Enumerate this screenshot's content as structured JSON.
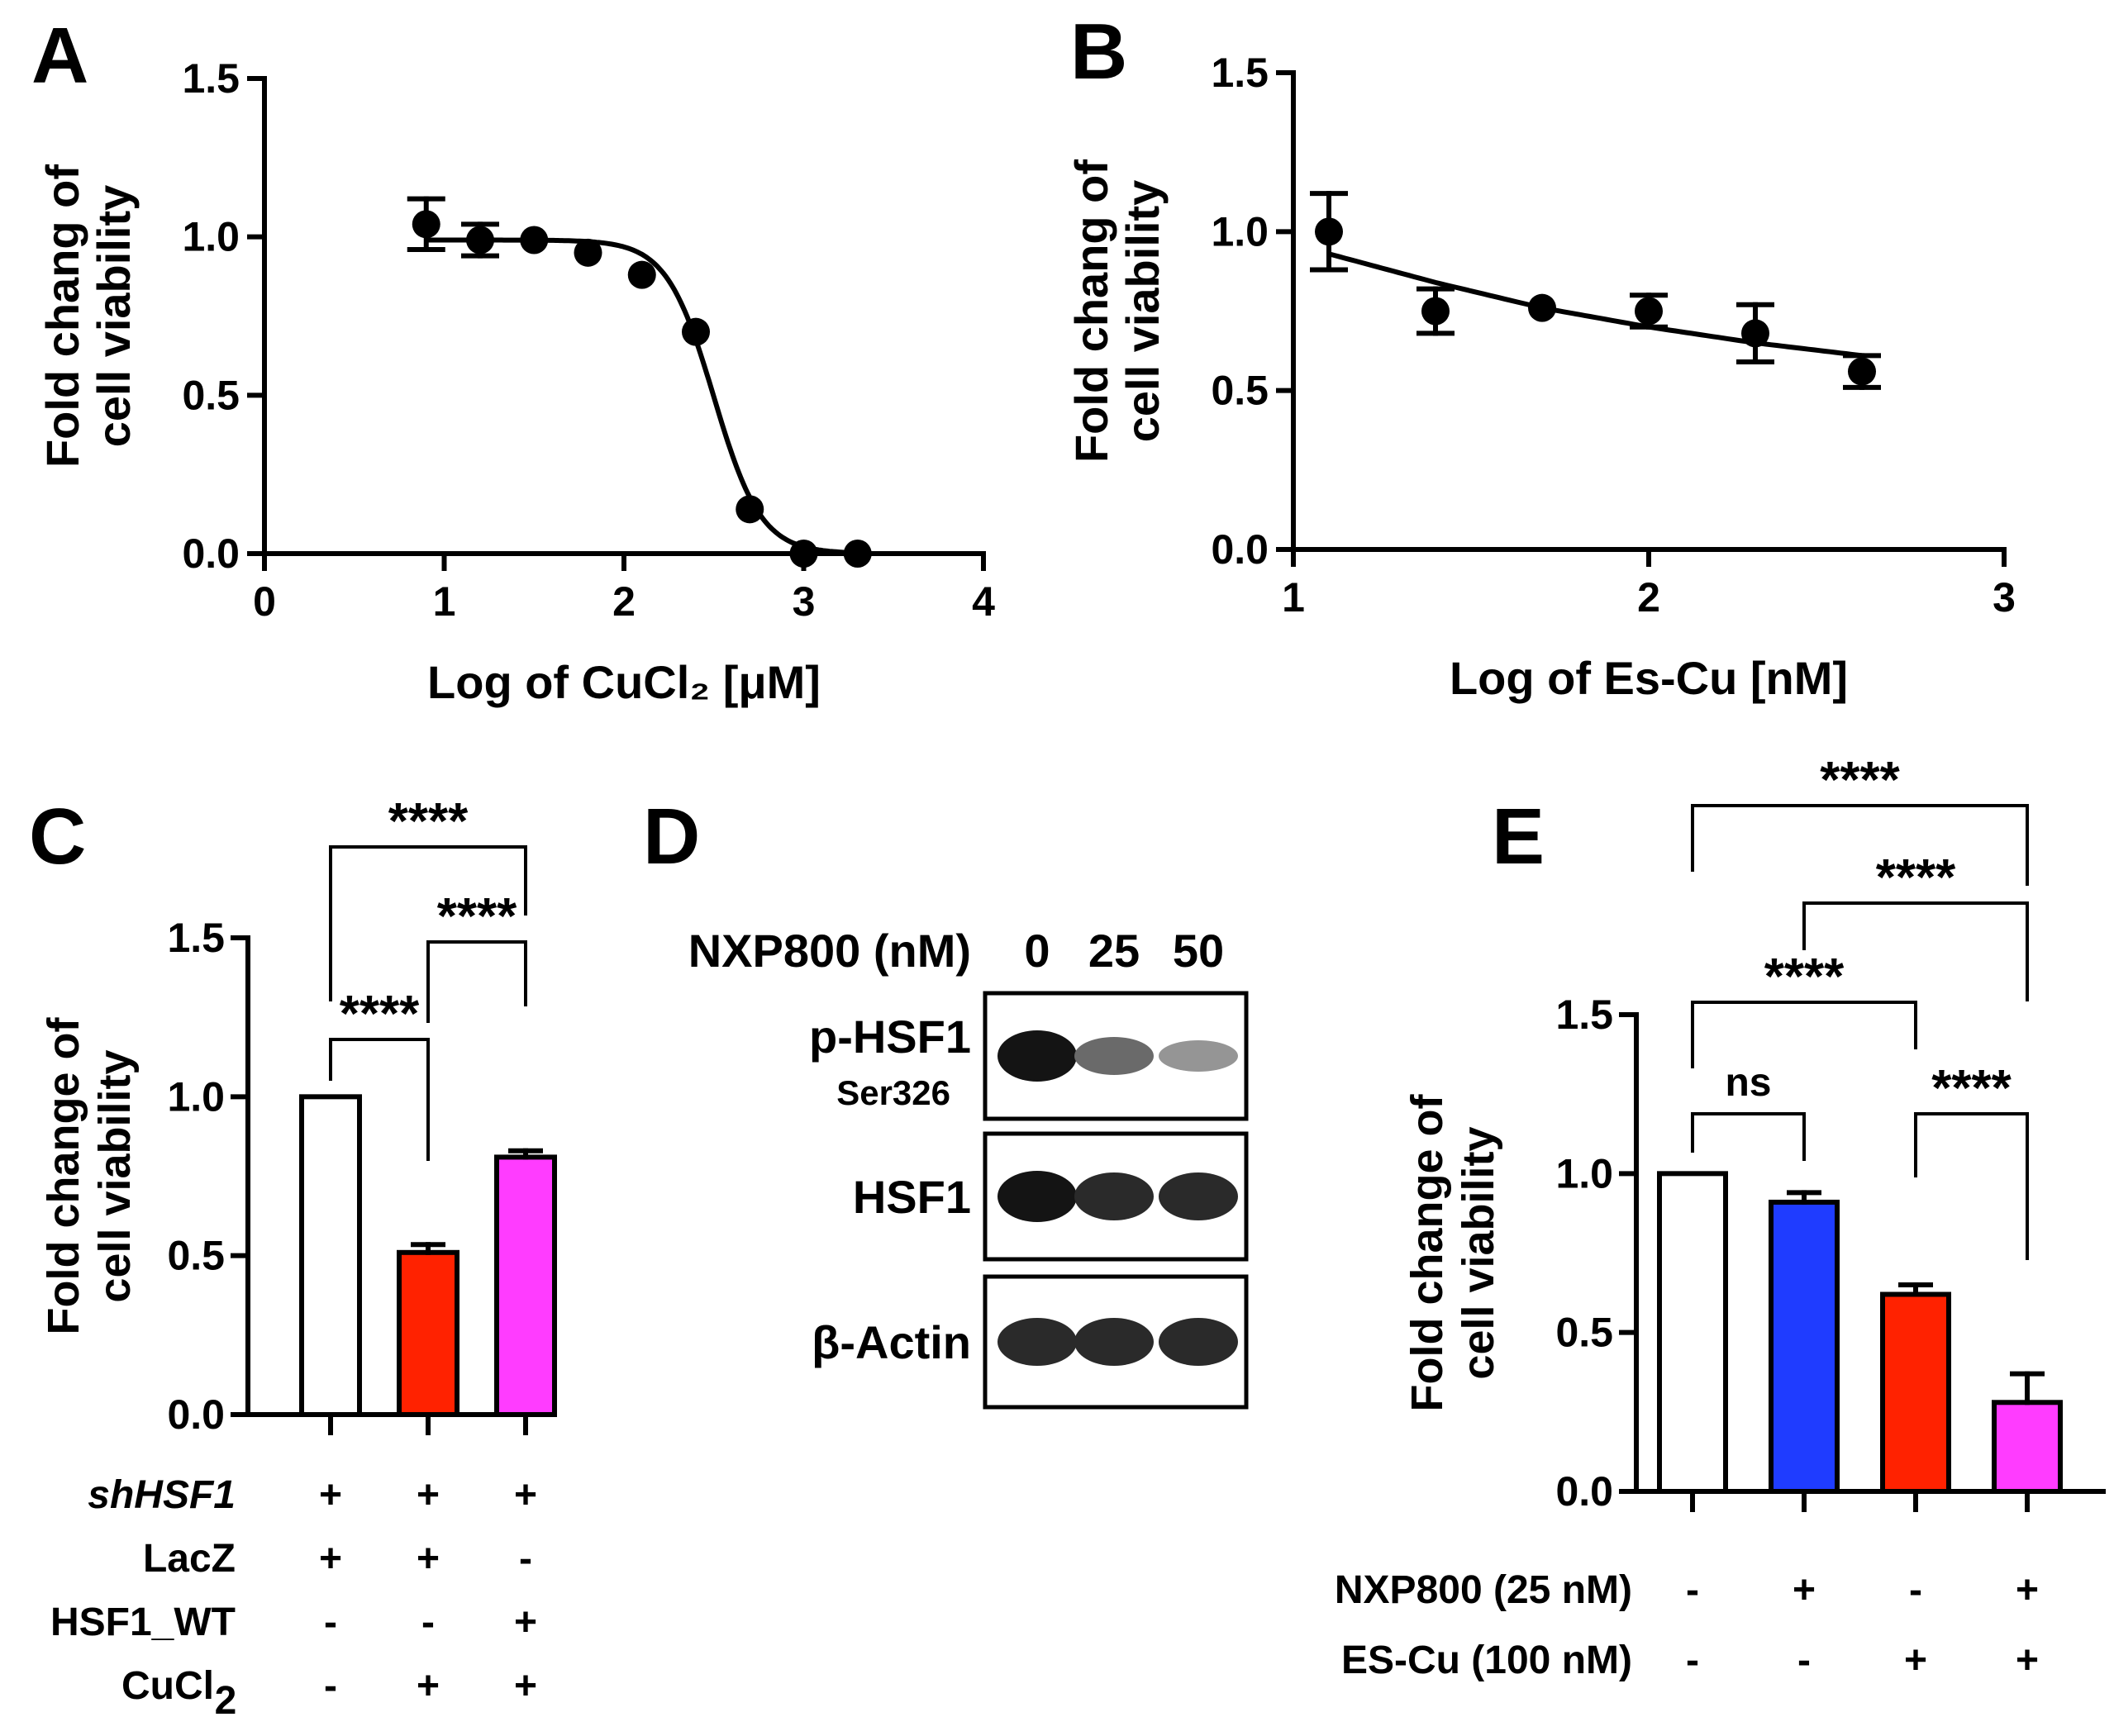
{
  "panels": {
    "A": {
      "letter": "A"
    },
    "B": {
      "letter": "B"
    },
    "C": {
      "letter": "C"
    },
    "D": {
      "letter": "D"
    },
    "E": {
      "letter": "E"
    }
  },
  "chart_data": [
    {
      "panel": "A",
      "type": "scatter",
      "fit": "sigmoidal dose-response curve",
      "xlabel": "Log of CuCl₂ [μM]",
      "ylabel": [
        "Fold chang of",
        "cell viability"
      ],
      "xlim": [
        0,
        4
      ],
      "ylim": [
        0,
        1.5
      ],
      "xticks": [
        "0",
        "1",
        "2",
        "3",
        "4"
      ],
      "yticks": [
        "0.0",
        "0.5",
        "1.0",
        "1.5"
      ],
      "x": [
        0.9,
        1.2,
        1.5,
        1.8,
        2.1,
        2.4,
        2.7,
        3.0,
        3.3
      ],
      "y": [
        1.04,
        0.99,
        0.99,
        0.95,
        0.88,
        0.7,
        0.14,
        0.0,
        0.0
      ],
      "err": [
        0.08,
        0.05,
        0.0,
        0.0,
        0.0,
        0.0,
        0.0,
        0.0,
        0.0
      ],
      "curve": {
        "top": 0.99,
        "bottom": 0.0,
        "logIC50": 2.5,
        "hill": 3.3
      }
    },
    {
      "panel": "B",
      "type": "scatter",
      "fit": "nonlinear fit curve",
      "xlabel": "Log of Es-Cu [nM]",
      "ylabel": [
        "Fold chang of",
        "cell viability"
      ],
      "xlim": [
        1,
        3
      ],
      "ylim": [
        0,
        1.5
      ],
      "xticks": [
        "1",
        "2",
        "3"
      ],
      "yticks": [
        "0.0",
        "0.5",
        "1.0",
        "1.5"
      ],
      "x": [
        1.1,
        1.4,
        1.7,
        2.0,
        2.3,
        2.6
      ],
      "y": [
        1.0,
        0.75,
        0.76,
        0.75,
        0.68,
        0.56
      ],
      "err": [
        0.12,
        0.07,
        0.0,
        0.05,
        0.09,
        0.05
      ],
      "curve": {
        "x": [
          1.1,
          1.4,
          1.7,
          2.0,
          2.3,
          2.6
        ],
        "y": [
          0.93,
          0.84,
          0.76,
          0.7,
          0.65,
          0.61
        ]
      }
    },
    {
      "panel": "C",
      "type": "bar",
      "ylabel": [
        "Fold change of",
        "cell viability"
      ],
      "ylim": [
        0,
        1.5
      ],
      "yticks": [
        "0.0",
        "0.5",
        "1.0",
        "1.5"
      ],
      "values": [
        1.0,
        0.51,
        0.81
      ],
      "err": [
        0.0,
        0.025,
        0.02
      ],
      "colors": [
        "#ffffff",
        "#ff2200",
        "#ff3cff"
      ],
      "significance": [
        {
          "from": 0,
          "to": 1,
          "label": "****"
        },
        {
          "from": 1,
          "to": 2,
          "label": "****"
        },
        {
          "from": 0,
          "to": 2,
          "label": "****"
        }
      ],
      "table": {
        "rows": [
          {
            "label": "shHSF1",
            "italic": true,
            "values": [
              "+",
              "+",
              "+"
            ]
          },
          {
            "label": "LacZ",
            "values": [
              "+",
              "+",
              "-"
            ]
          },
          {
            "label": "HSF1_WT",
            "values": [
              "-",
              "-",
              "+"
            ]
          },
          {
            "label": "CuCl",
            "sub": "2",
            "values": [
              "-",
              "+",
              "+"
            ]
          }
        ]
      }
    },
    {
      "panel": "E",
      "type": "bar",
      "ylabel": [
        "Fold change of",
        "cell viability"
      ],
      "ylim": [
        0,
        1.5
      ],
      "yticks": [
        "0.0",
        "0.5",
        "1.0",
        "1.5"
      ],
      "values": [
        1.0,
        0.91,
        0.62,
        0.28
      ],
      "err": [
        0.0,
        0.03,
        0.03,
        0.09
      ],
      "colors": [
        "#ffffff",
        "#1f3cff",
        "#ff2200",
        "#ff3cff"
      ],
      "significance": [
        {
          "from": 0,
          "to": 1,
          "label": "ns"
        },
        {
          "from": 2,
          "to": 3,
          "label": "****"
        },
        {
          "from": 0,
          "to": 2,
          "label": "****"
        },
        {
          "from": 1,
          "to": 3,
          "label": "****"
        },
        {
          "from": 0,
          "to": 3,
          "label": "****"
        }
      ],
      "table": {
        "rows": [
          {
            "label": "NXP800 (25 nM)",
            "values": [
              "-",
              "+",
              "-",
              "+"
            ]
          },
          {
            "label": "ES-Cu (100 nM)",
            "values": [
              "-",
              "-",
              "+",
              "+"
            ]
          }
        ]
      }
    }
  ],
  "blot": {
    "header_label": "NXP800 (nM)",
    "lanes": [
      "0",
      "25",
      "50"
    ],
    "bands": [
      {
        "label": "p-HSF1",
        "sublabel": "Ser326",
        "intensity": [
          1.0,
          0.6,
          0.4
        ]
      },
      {
        "label": "HSF1",
        "intensity": [
          1.0,
          0.9,
          0.9
        ]
      },
      {
        "label": "β-Actin",
        "intensity": [
          0.9,
          0.9,
          0.9
        ]
      }
    ]
  }
}
